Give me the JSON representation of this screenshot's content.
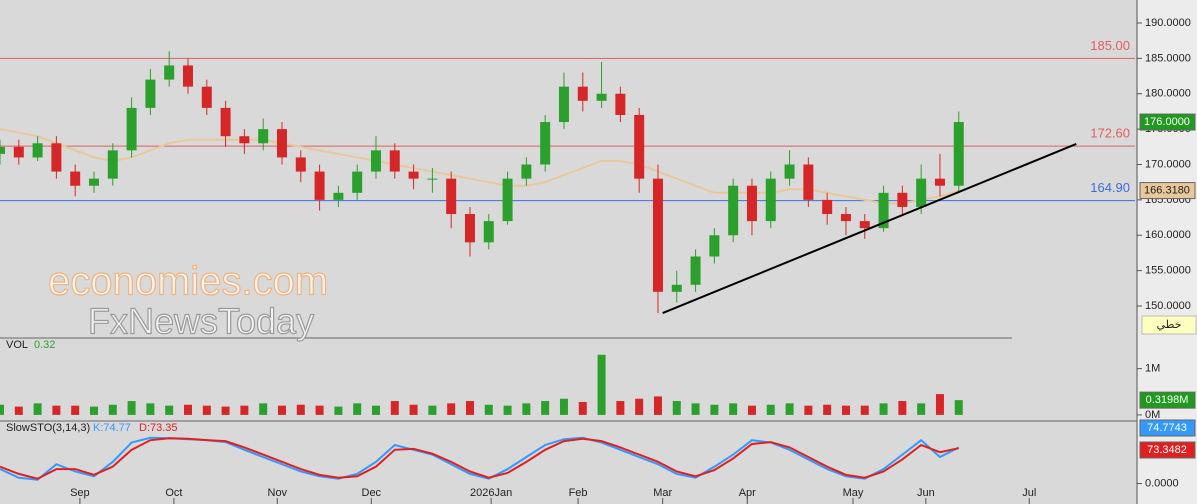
{
  "chart_data": [
    {
      "type": "candlestick",
      "x": [
        0,
        4,
        8,
        12,
        16,
        20,
        24,
        28,
        32,
        36,
        40,
        44,
        48,
        52,
        56,
        60,
        64,
        68,
        72,
        76,
        80,
        84,
        88,
        92,
        96,
        100,
        104,
        108,
        112,
        116,
        120,
        124,
        128,
        132,
        136,
        140,
        144,
        148,
        152,
        156,
        160,
        164,
        168,
        172,
        176,
        180,
        184,
        188,
        192,
        196,
        200,
        204
      ],
      "open": [
        171.5,
        172.5,
        171,
        173,
        169,
        167,
        168,
        172,
        178,
        182,
        184,
        181,
        178,
        174,
        173,
        175,
        171,
        169,
        165,
        166,
        169,
        172,
        169,
        168,
        168,
        163,
        159,
        162,
        168,
        170,
        176,
        181,
        179,
        180,
        177,
        168,
        152,
        153,
        157,
        160,
        167,
        162,
        168,
        170,
        165,
        163,
        162,
        161,
        166,
        164,
        168,
        167
      ],
      "high": [
        173.5,
        173.5,
        174,
        174,
        170,
        169,
        173,
        179.5,
        183.5,
        186,
        185,
        182,
        179,
        175,
        176.5,
        176,
        172,
        170,
        167,
        170,
        174,
        173,
        170,
        169.5,
        169,
        164,
        163,
        169,
        171,
        177,
        183,
        183,
        184.5,
        181,
        178,
        170,
        155,
        158,
        161,
        168,
        168,
        169,
        172,
        171,
        166,
        164,
        163,
        167,
        167,
        170,
        171.5,
        177.5
      ],
      "low": [
        170,
        170,
        170.5,
        168,
        165.5,
        166,
        167,
        171,
        177,
        181,
        180,
        177,
        172.5,
        171.5,
        172,
        170,
        167.5,
        163.5,
        164,
        165,
        168,
        168,
        166.5,
        166,
        161,
        157,
        158,
        161.5,
        167,
        169,
        175,
        177.5,
        178,
        176,
        166,
        149,
        150.5,
        152,
        156,
        159,
        160,
        161,
        167,
        164,
        161.5,
        160,
        159.5,
        160.5,
        163,
        163,
        165.5,
        166
      ],
      "close": [
        172.5,
        171,
        173,
        169,
        167,
        168,
        172,
        178,
        182,
        184,
        181,
        178,
        174,
        173,
        175,
        171,
        169,
        165,
        166,
        169,
        172,
        169,
        168,
        168,
        163,
        159,
        162,
        168,
        170,
        176,
        181,
        179,
        180,
        177,
        168,
        152,
        153,
        157,
        160,
        167,
        162,
        168,
        170,
        165,
        163,
        162,
        161,
        166,
        164,
        168,
        167,
        176
      ],
      "up_color": "#2ca02c",
      "down_color": "#d62728",
      "ma": {
        "values": [
          175,
          174.5,
          174,
          173,
          172,
          171,
          170.5,
          171,
          172,
          173,
          173.5,
          173.5,
          173.5,
          173.5,
          173.5,
          173,
          172.5,
          172,
          171.5,
          171,
          170.5,
          170,
          169.5,
          169,
          168.5,
          168,
          167.5,
          167,
          167,
          167.5,
          168.5,
          169.5,
          170.5,
          170.5,
          170,
          169,
          168,
          167,
          166,
          166,
          166,
          166,
          166.5,
          166.5,
          166,
          165.5,
          165,
          164.5,
          164.5,
          165,
          165.5,
          166.318
        ],
        "color": "#e8c89a",
        "last_label": "166.3180"
      },
      "last_label": "176.0000",
      "hlines": [
        {
          "value": 185,
          "label": "185.00",
          "color": "#e06060"
        },
        {
          "value": 172.6,
          "label": "172.60",
          "color": "#e06060"
        },
        {
          "value": 164.9,
          "label": "164.90",
          "color": "#3a6ee0"
        }
      ],
      "trendline": {
        "x": [
          141,
          229
        ],
        "y": [
          149,
          172.9
        ],
        "color": "#000000"
      },
      "xlim": [
        0,
        241.5
      ],
      "ylim": [
        145.62,
        193.25
      ],
      "yticks": [
        {
          "value": 190,
          "label": "190.0000"
        },
        {
          "value": 185,
          "label": "185.0000"
        },
        {
          "value": 180,
          "label": "180.0000"
        },
        {
          "value": 175,
          "label": "175.0000"
        },
        {
          "value": 170,
          "label": "170.0000"
        },
        {
          "value": 165,
          "label": "165.0000"
        },
        {
          "value": 160,
          "label": "160.0000"
        },
        {
          "value": 155,
          "label": "155.0000"
        },
        {
          "value": 150,
          "label": "150.0000"
        }
      ],
      "xticks": [
        {
          "value": 17,
          "label": "Sep"
        },
        {
          "value": 37,
          "label": "Oct"
        },
        {
          "value": 59,
          "label": "Nov"
        },
        {
          "value": 79,
          "label": "Dec"
        },
        {
          "value": 104.5,
          "label": "2026Jan"
        },
        {
          "value": 123,
          "label": "Feb"
        },
        {
          "value": 141,
          "label": "Mar"
        },
        {
          "value": 159,
          "label": "Apr"
        },
        {
          "value": 181.5,
          "label": "May"
        },
        {
          "value": 197,
          "label": "Jun"
        },
        {
          "value": 219,
          "label": "Jul"
        }
      ]
    },
    {
      "type": "bar",
      "label": "VOL",
      "legend_value": 0.32,
      "last_label": "0.3198M",
      "values": [
        0.22,
        0.18,
        0.25,
        0.2,
        0.2,
        0.18,
        0.22,
        0.3,
        0.25,
        0.2,
        0.22,
        0.2,
        0.18,
        0.2,
        0.25,
        0.2,
        0.22,
        0.2,
        0.18,
        0.25,
        0.2,
        0.3,
        0.22,
        0.2,
        0.25,
        0.3,
        0.22,
        0.2,
        0.25,
        0.3,
        0.35,
        0.28,
        1.3,
        0.3,
        0.35,
        0.4,
        0.3,
        0.25,
        0.22,
        0.25,
        0.2,
        0.22,
        0.25,
        0.2,
        0.22,
        0.2,
        0.2,
        0.25,
        0.3,
        0.25,
        0.45,
        0.3198
      ],
      "ylim": [
        -0.11,
        1.62
      ],
      "yticks": [
        {
          "value": 1,
          "label": "1M"
        },
        {
          "value": 0,
          "label": "0M"
        }
      ]
    },
    {
      "type": "line",
      "title": "SlowSTO(3,14,3)",
      "series": [
        {
          "legend": "K:74.77",
          "last_label": "74.7743",
          "color": "#3399ff",
          "values": [
            30,
            12,
            8,
            40,
            25,
            15,
            45,
            85,
            95,
            94,
            92,
            90,
            86,
            70,
            55,
            40,
            25,
            15,
            10,
            20,
            45,
            80,
            70,
            60,
            40,
            20,
            10,
            30,
            55,
            80,
            92,
            95,
            85,
            70,
            55,
            40,
            20,
            12,
            35,
            60,
            90,
            85,
            70,
            50,
            30,
            15,
            10,
            30,
            60,
            90,
            55,
            74.77
          ]
        },
        {
          "legend": "D:73.35",
          "last_label": "73.3482",
          "color": "#e02020",
          "values": [
            35,
            20,
            10,
            30,
            30,
            18,
            35,
            70,
            90,
            94,
            93,
            90,
            88,
            75,
            60,
            45,
            30,
            18,
            12,
            15,
            35,
            70,
            72,
            62,
            45,
            25,
            12,
            22,
            45,
            70,
            88,
            93,
            88,
            75,
            60,
            45,
            25,
            15,
            28,
            52,
            82,
            86,
            75,
            55,
            35,
            18,
            12,
            25,
            50,
            80,
            65,
            73.35
          ]
        }
      ],
      "ylim": [
        -42.5,
        127.7
      ],
      "yticks": [
        {
          "value": 0,
          "label": "0.0000"
        }
      ]
    }
  ],
  "ui": {
    "chart_style_button": "خطي"
  },
  "watermark": {
    "line1": "economies.com",
    "line2": "FxNewsToday"
  }
}
